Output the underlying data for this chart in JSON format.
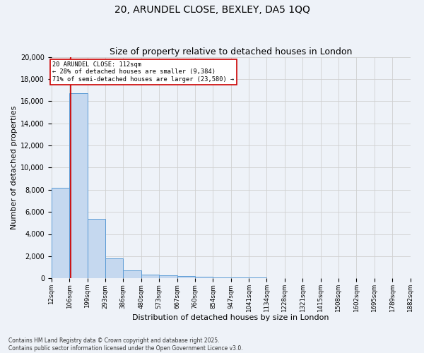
{
  "title1": "20, ARUNDEL CLOSE, BEXLEY, DA5 1QQ",
  "title2": "Size of property relative to detached houses in London",
  "xlabel": "Distribution of detached houses by size in London",
  "ylabel": "Number of detached properties",
  "bar_color": "#c5d8ef",
  "bar_edge_color": "#5b9bd5",
  "bin_edges": [
    12,
    106,
    199,
    293,
    386,
    480,
    573,
    667,
    760,
    854,
    947,
    1041,
    1134,
    1228,
    1321,
    1415,
    1508,
    1602,
    1695,
    1789,
    1882
  ],
  "bar_heights": [
    8200,
    16700,
    5400,
    1800,
    700,
    350,
    250,
    200,
    150,
    100,
    80,
    60,
    40,
    30,
    20,
    15,
    10,
    8,
    5,
    3
  ],
  "xlim": [
    12,
    1882
  ],
  "ylim": [
    0,
    20000
  ],
  "yticks": [
    0,
    2000,
    4000,
    6000,
    8000,
    10000,
    12000,
    14000,
    16000,
    18000,
    20000
  ],
  "property_size": 112,
  "red_line_color": "#cc0000",
  "annotation_text": "20 ARUNDEL CLOSE: 112sqm\n← 28% of detached houses are smaller (9,384)\n71% of semi-detached houses are larger (23,580) →",
  "annotation_box_color": "#ffffff",
  "annotation_box_edge": "#cc0000",
  "footnote1": "Contains HM Land Registry data © Crown copyright and database right 2025.",
  "footnote2": "Contains public sector information licensed under the Open Government Licence v3.0.",
  "grid_color": "#d0d0d0",
  "background_color": "#eef2f8"
}
